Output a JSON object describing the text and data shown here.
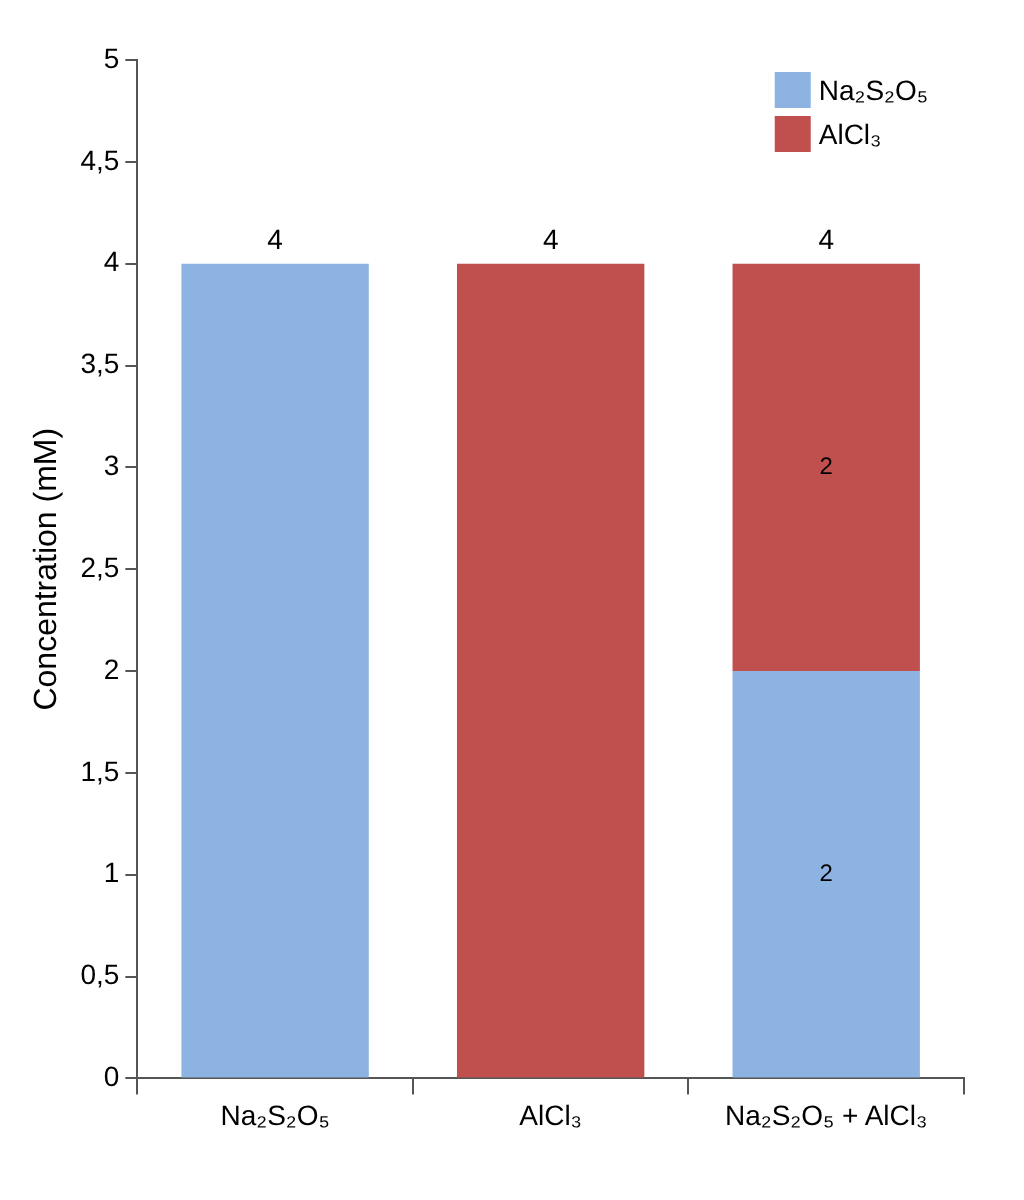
{
  "chart_data": {
    "type": "bar",
    "stacked": true,
    "ylabel": "Concentration (mM)",
    "categories": [
      "Na₂S₂O₅",
      "AlCl₃",
      "Na₂S₂O₅ + AlCl₃"
    ],
    "series": [
      {
        "name": "Na₂S₂O₅",
        "color": "#8db3e2",
        "values": [
          4,
          null,
          2
        ],
        "value_labels": [
          null,
          null,
          "2"
        ]
      },
      {
        "name": "AlCl₃",
        "color": "#c0504d",
        "values": [
          null,
          4,
          2
        ],
        "value_labels": [
          null,
          null,
          "2"
        ]
      }
    ],
    "totals": [
      "4",
      "4",
      "4"
    ],
    "ylim": [
      0,
      5
    ],
    "yticks": [
      0,
      {
        "value": 0.5,
        "label": "0,5"
      },
      1,
      {
        "value": 1.5,
        "label": "1,5"
      },
      2,
      {
        "value": 2.5,
        "label": "2,5"
      },
      3,
      {
        "value": 3.5,
        "label": "3,5"
      },
      4,
      {
        "value": 4.5,
        "label": "4,5"
      },
      5
    ],
    "grid": false,
    "legend": "top right"
  }
}
